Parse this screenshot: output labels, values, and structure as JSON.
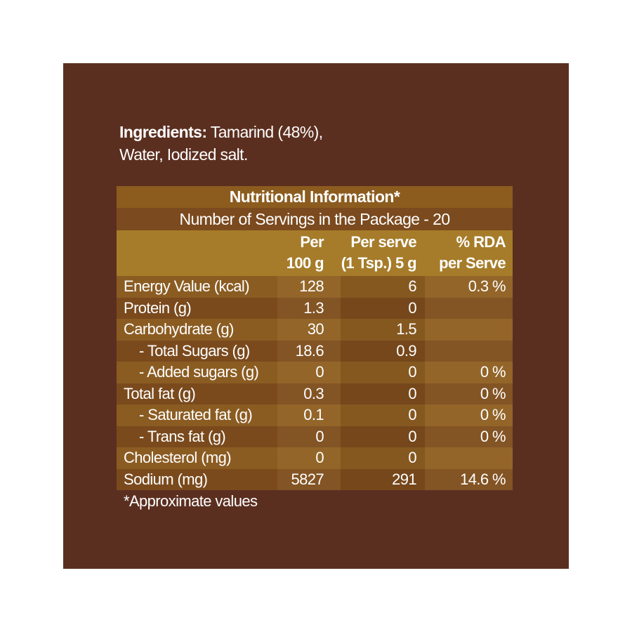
{
  "ingredients": {
    "label": "Ingredients:",
    "line1": " Tamarind (48%),",
    "line2": "Water, Iodized salt."
  },
  "table": {
    "title": "Nutritional Information*",
    "servings": "Number of Servings in the Package - 20",
    "headers": [
      {
        "l1": "",
        "l2": ""
      },
      {
        "l1": "Per",
        "l2": "100 g"
      },
      {
        "l1": "Per serve",
        "l2": "(1 Tsp.) 5 g"
      },
      {
        "l1": "% RDA",
        "l2": "per Serve"
      }
    ],
    "rows": [
      [
        "Energy Value (kcal)",
        "128",
        "6",
        "0.3 %"
      ],
      [
        "Protein (g)",
        "1.3",
        "0",
        ""
      ],
      [
        "Carbohydrate (g)",
        "30",
        "1.5",
        ""
      ],
      [
        "    - Total Sugars (g)",
        "18.6",
        "0.9",
        ""
      ],
      [
        "    - Added sugars (g)",
        "0",
        "0",
        "0 %"
      ],
      [
        "Total fat (g)",
        "0.3",
        "0",
        "0 %"
      ],
      [
        "    - Saturated fat (g)",
        "0.1",
        "0",
        "0 %"
      ],
      [
        "    - Trans fat (g)",
        "0",
        "0",
        "0 %"
      ],
      [
        "Cholesterol (mg)",
        "0",
        "0",
        ""
      ],
      [
        "Sodium (mg)",
        "5827",
        "291",
        "14.6 %"
      ]
    ]
  },
  "footnote": "*Approximate values",
  "colors": {
    "background": "#5b2f20",
    "header": "#a67c2a",
    "title": "#8c5c1f"
  }
}
